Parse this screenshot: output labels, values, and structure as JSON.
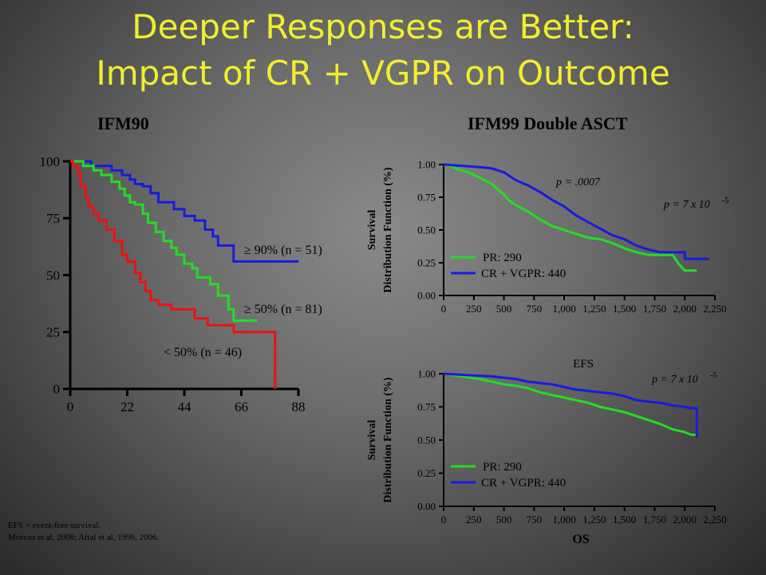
{
  "slide": {
    "title_line1": "Deeper Responses are Better:",
    "title_line2": "Impact of CR + VGPR on Outcome",
    "title_color": "#f2ee2c",
    "footnote_line1": "EFS = event-free survival.",
    "footnote_line2": "Moreau et al, 2008; Attal et al, 1996, 2006."
  },
  "chart_data": [
    {
      "id": "ifm90",
      "type": "line",
      "title": "IFM90",
      "xlabel": "",
      "ylabel": "",
      "xlim": [
        0,
        88
      ],
      "ylim": [
        0,
        100
      ],
      "xticks": [
        "0",
        "22",
        "44",
        "66",
        "88"
      ],
      "yticks": [
        "0",
        "25",
        "50",
        "75",
        "100"
      ],
      "series": [
        {
          "name": "≥ 90% (n = 51)",
          "color": "#1a1ae0",
          "points": [
            [
              0,
              100
            ],
            [
              8,
              100
            ],
            [
              8,
              98
            ],
            [
              16,
              98
            ],
            [
              16,
              96
            ],
            [
              20,
              96
            ],
            [
              20,
              94
            ],
            [
              23,
              94
            ],
            [
              23,
              92
            ],
            [
              25,
              92
            ],
            [
              25,
              90
            ],
            [
              28,
              90
            ],
            [
              28,
              89
            ],
            [
              31,
              89
            ],
            [
              31,
              86
            ],
            [
              34,
              86
            ],
            [
              34,
              82
            ],
            [
              40,
              82
            ],
            [
              40,
              79
            ],
            [
              44,
              79
            ],
            [
              44,
              76
            ],
            [
              48,
              76
            ],
            [
              48,
              74
            ],
            [
              52,
              74
            ],
            [
              52,
              70
            ],
            [
              55,
              70
            ],
            [
              55,
              67
            ],
            [
              57,
              67
            ],
            [
              57,
              63
            ],
            [
              63,
              63
            ],
            [
              63,
              56
            ],
            [
              88,
              56
            ]
          ]
        },
        {
          "name": "≥ 50% (n = 81)",
          "color": "#22dd22",
          "points": [
            [
              0,
              100
            ],
            [
              5,
              100
            ],
            [
              5,
              98
            ],
            [
              9,
              98
            ],
            [
              9,
              96
            ],
            [
              12,
              96
            ],
            [
              12,
              94
            ],
            [
              16,
              94
            ],
            [
              16,
              91
            ],
            [
              19,
              91
            ],
            [
              19,
              88
            ],
            [
              21,
              88
            ],
            [
              21,
              85
            ],
            [
              23,
              85
            ],
            [
              23,
              82
            ],
            [
              25,
              82
            ],
            [
              25,
              81
            ],
            [
              28,
              81
            ],
            [
              28,
              77
            ],
            [
              30,
              77
            ],
            [
              30,
              73
            ],
            [
              33,
              73
            ],
            [
              33,
              69
            ],
            [
              36,
              69
            ],
            [
              36,
              65
            ],
            [
              39,
              65
            ],
            [
              39,
              62
            ],
            [
              41,
              62
            ],
            [
              41,
              59
            ],
            [
              44,
              59
            ],
            [
              44,
              55
            ],
            [
              47,
              55
            ],
            [
              47,
              53
            ],
            [
              49,
              53
            ],
            [
              49,
              49
            ],
            [
              54,
              49
            ],
            [
              54,
              46
            ],
            [
              57,
              46
            ],
            [
              57,
              41
            ],
            [
              61,
              41
            ],
            [
              61,
              35
            ],
            [
              63,
              35
            ],
            [
              63,
              30
            ],
            [
              72,
              30
            ]
          ]
        },
        {
          "name": "< 50% (n = 46)",
          "color": "#ee1111",
          "points": [
            [
              0,
              100
            ],
            [
              1,
              100
            ],
            [
              1,
              98
            ],
            [
              3,
              98
            ],
            [
              3,
              95
            ],
            [
              4,
              95
            ],
            [
              4,
              89
            ],
            [
              6,
              89
            ],
            [
              6,
              84
            ],
            [
              7,
              84
            ],
            [
              7,
              80
            ],
            [
              9,
              80
            ],
            [
              9,
              77
            ],
            [
              11,
              77
            ],
            [
              11,
              74
            ],
            [
              14,
              74
            ],
            [
              14,
              70
            ],
            [
              17,
              70
            ],
            [
              17,
              65
            ],
            [
              20,
              65
            ],
            [
              20,
              59
            ],
            [
              22,
              59
            ],
            [
              22,
              56
            ],
            [
              25,
              56
            ],
            [
              25,
              51
            ],
            [
              27,
              51
            ],
            [
              27,
              47
            ],
            [
              29,
              47
            ],
            [
              29,
              43
            ],
            [
              31,
              43
            ],
            [
              31,
              39
            ],
            [
              34,
              39
            ],
            [
              34,
              37
            ],
            [
              39,
              37
            ],
            [
              39,
              35
            ],
            [
              48,
              35
            ],
            [
              48,
              31
            ],
            [
              53,
              31
            ],
            [
              53,
              28
            ],
            [
              63,
              28
            ],
            [
              63,
              25
            ],
            [
              79,
              25
            ],
            [
              79,
              0
            ]
          ]
        }
      ]
    },
    {
      "id": "ifm99-os",
      "type": "line",
      "title": "IFM99 Double ASCT",
      "xlabel": "",
      "ylabel_line1": "Survival",
      "ylabel_line2": "Distribution Function (%)",
      "xlim": [
        0,
        2250
      ],
      "ylim": [
        0,
        1
      ],
      "xticks": [
        "0",
        "250",
        "500",
        "750",
        "1,000",
        "1,250",
        "1,500",
        "1,750",
        "2,000",
        "2,250"
      ],
      "yticks": [
        "0.00",
        "0.25",
        "0.50",
        "0.75",
        "1.00"
      ],
      "annotation_p1": "p = .0007",
      "annotation_p2": "p = 7 x 10",
      "annotation_p2_sup": "-5",
      "series": [
        {
          "name": "PR: 290",
          "color": "#22dd22",
          "points": [
            [
              0,
              1.0
            ],
            [
              50,
              0.99
            ],
            [
              100,
              0.97
            ],
            [
              200,
              0.94
            ],
            [
              300,
              0.9
            ],
            [
              400,
              0.85
            ],
            [
              500,
              0.77
            ],
            [
              550,
              0.72
            ],
            [
              600,
              0.69
            ],
            [
              700,
              0.64
            ],
            [
              800,
              0.58
            ],
            [
              900,
              0.53
            ],
            [
              1000,
              0.5
            ],
            [
              1100,
              0.47
            ],
            [
              1200,
              0.44
            ],
            [
              1300,
              0.43
            ],
            [
              1400,
              0.4
            ],
            [
              1500,
              0.36
            ],
            [
              1600,
              0.33
            ],
            [
              1700,
              0.31
            ],
            [
              1900,
              0.31
            ],
            [
              1950,
              0.24
            ],
            [
              2000,
              0.19
            ],
            [
              2100,
              0.19
            ]
          ]
        },
        {
          "name": "CR + VGPR: 440",
          "color": "#1a1ae0",
          "points": [
            [
              0,
              1.0
            ],
            [
              150,
              0.99
            ],
            [
              300,
              0.98
            ],
            [
              400,
              0.97
            ],
            [
              500,
              0.94
            ],
            [
              550,
              0.91
            ],
            [
              600,
              0.88
            ],
            [
              700,
              0.84
            ],
            [
              800,
              0.79
            ],
            [
              900,
              0.73
            ],
            [
              1000,
              0.68
            ],
            [
              1100,
              0.61
            ],
            [
              1200,
              0.56
            ],
            [
              1300,
              0.51
            ],
            [
              1400,
              0.46
            ],
            [
              1500,
              0.43
            ],
            [
              1600,
              0.38
            ],
            [
              1700,
              0.35
            ],
            [
              1800,
              0.33
            ],
            [
              2000,
              0.33
            ],
            [
              2000,
              0.28
            ],
            [
              2200,
              0.28
            ]
          ]
        }
      ]
    },
    {
      "id": "ifm99-efs",
      "type": "line",
      "title": "EFS",
      "xlabel": "OS",
      "ylabel_line1": "Survival",
      "ylabel_line2": "Distribution Function (%)",
      "xlim": [
        0,
        2250
      ],
      "ylim": [
        0,
        1
      ],
      "xticks": [
        "0",
        "250",
        "500",
        "750",
        "1,000",
        "1,250",
        "1,500",
        "1,750",
        "2,000",
        "2,250"
      ],
      "yticks": [
        "0.00",
        "0.25",
        "0.50",
        "0.75",
        "1.00"
      ],
      "annotation_p2": "p = 7 x 10",
      "annotation_p2_sup": "-5",
      "series": [
        {
          "name": "PR: 290",
          "color": "#22dd22",
          "points": [
            [
              0,
              1.0
            ],
            [
              150,
              0.98
            ],
            [
              300,
              0.96
            ],
            [
              400,
              0.94
            ],
            [
              500,
              0.92
            ],
            [
              600,
              0.91
            ],
            [
              700,
              0.89
            ],
            [
              800,
              0.86
            ],
            [
              900,
              0.84
            ],
            [
              1000,
              0.82
            ],
            [
              1100,
              0.8
            ],
            [
              1200,
              0.78
            ],
            [
              1300,
              0.75
            ],
            [
              1400,
              0.73
            ],
            [
              1500,
              0.71
            ],
            [
              1600,
              0.68
            ],
            [
              1700,
              0.65
            ],
            [
              1800,
              0.62
            ],
            [
              1900,
              0.58
            ],
            [
              2000,
              0.56
            ],
            [
              2050,
              0.54
            ],
            [
              2100,
              0.54
            ]
          ]
        },
        {
          "name": "CR + VGPR: 440",
          "color": "#1a1ae0",
          "points": [
            [
              0,
              1.0
            ],
            [
              200,
              0.99
            ],
            [
              400,
              0.98
            ],
            [
              500,
              0.97
            ],
            [
              600,
              0.96
            ],
            [
              700,
              0.94
            ],
            [
              800,
              0.93
            ],
            [
              900,
              0.92
            ],
            [
              1000,
              0.9
            ],
            [
              1100,
              0.88
            ],
            [
              1200,
              0.87
            ],
            [
              1300,
              0.86
            ],
            [
              1400,
              0.85
            ],
            [
              1500,
              0.83
            ],
            [
              1600,
              0.8
            ],
            [
              1700,
              0.79
            ],
            [
              1800,
              0.78
            ],
            [
              1900,
              0.76
            ],
            [
              2000,
              0.75
            ],
            [
              2050,
              0.74
            ],
            [
              2100,
              0.74
            ],
            [
              2100,
              0.52
            ]
          ]
        }
      ]
    }
  ]
}
